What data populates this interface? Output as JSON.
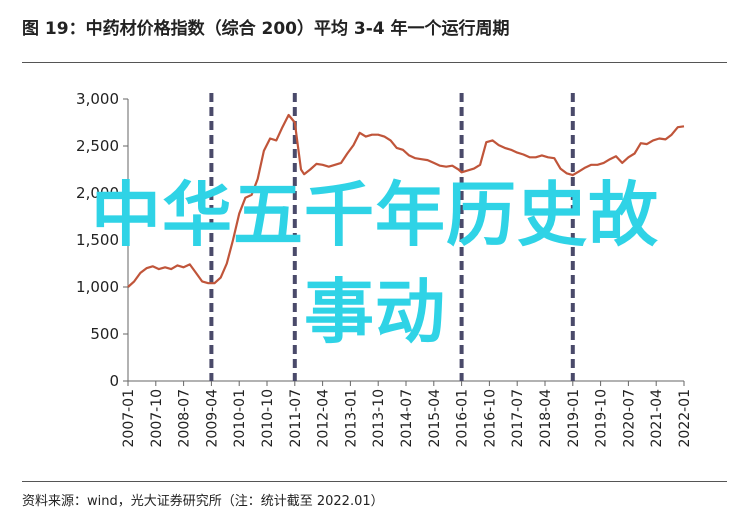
{
  "title": "图 19：中药材价格指数（综合 200）平均 3-4 年一个运行周期",
  "source": "资料来源：wind，光大证券研究所（注：统计截至 2022.01）",
  "overlay": {
    "line1": "中华五千年历史故",
    "line2": "事动"
  },
  "colors": {
    "line": "#c0553a",
    "dashed": "#4a4a6a",
    "overlay": "#2fd3e6"
  },
  "chart_data": {
    "type": "line",
    "title": "",
    "xlabel": "",
    "ylabel": "",
    "ylim": [
      0,
      3000
    ],
    "yticks": [
      0,
      500,
      1000,
      1500,
      2000,
      2500,
      3000
    ],
    "ytick_labels": [
      "0",
      "500",
      "1,000",
      "1,500",
      "2,000",
      "2,500",
      "3,000"
    ],
    "xticks": [
      "2007-01",
      "2007-10",
      "2008-07",
      "2009-04",
      "2010-01",
      "2010-10",
      "2011-07",
      "2012-04",
      "2013-01",
      "2013-10",
      "2014-07",
      "2015-04",
      "2016-01",
      "2016-10",
      "2017-07",
      "2018-04",
      "2019-01",
      "2019-10",
      "2020-07",
      "2021-04",
      "2022-01"
    ],
    "cycle_markers": [
      "2009-04",
      "2011-07",
      "2016-01",
      "2019-01"
    ],
    "grid": false,
    "series": [
      {
        "values": [
          [
            "2007-01",
            1000
          ],
          [
            "2007-03",
            1060
          ],
          [
            "2007-05",
            1150
          ],
          [
            "2007-07",
            1200
          ],
          [
            "2007-09",
            1220
          ],
          [
            "2007-11",
            1190
          ],
          [
            "2008-01",
            1210
          ],
          [
            "2008-03",
            1190
          ],
          [
            "2008-05",
            1230
          ],
          [
            "2008-07",
            1210
          ],
          [
            "2008-09",
            1240
          ],
          [
            "2008-11",
            1150
          ],
          [
            "2009-01",
            1060
          ],
          [
            "2009-03",
            1040
          ],
          [
            "2009-05",
            1040
          ],
          [
            "2009-07",
            1100
          ],
          [
            "2009-09",
            1250
          ],
          [
            "2009-11",
            1500
          ],
          [
            "2010-01",
            1780
          ],
          [
            "2010-03",
            1950
          ],
          [
            "2010-05",
            1980
          ],
          [
            "2010-07",
            2150
          ],
          [
            "2010-09",
            2450
          ],
          [
            "2010-11",
            2580
          ],
          [
            "2011-01",
            2560
          ],
          [
            "2011-03",
            2700
          ],
          [
            "2011-05",
            2830
          ],
          [
            "2011-07",
            2750
          ],
          [
            "2011-08",
            2500
          ],
          [
            "2011-09",
            2250
          ],
          [
            "2011-10",
            2200
          ],
          [
            "2011-12",
            2250
          ],
          [
            "2012-02",
            2310
          ],
          [
            "2012-04",
            2300
          ],
          [
            "2012-06",
            2280
          ],
          [
            "2012-08",
            2300
          ],
          [
            "2012-10",
            2320
          ],
          [
            "2012-12",
            2420
          ],
          [
            "2013-02",
            2510
          ],
          [
            "2013-04",
            2640
          ],
          [
            "2013-06",
            2600
          ],
          [
            "2013-08",
            2620
          ],
          [
            "2013-10",
            2620
          ],
          [
            "2013-12",
            2600
          ],
          [
            "2014-02",
            2560
          ],
          [
            "2014-04",
            2480
          ],
          [
            "2014-06",
            2460
          ],
          [
            "2014-08",
            2400
          ],
          [
            "2014-10",
            2370
          ],
          [
            "2014-12",
            2360
          ],
          [
            "2015-02",
            2350
          ],
          [
            "2015-04",
            2320
          ],
          [
            "2015-06",
            2290
          ],
          [
            "2015-08",
            2280
          ],
          [
            "2015-10",
            2290
          ],
          [
            "2015-12",
            2250
          ],
          [
            "2016-01",
            2220
          ],
          [
            "2016-03",
            2240
          ],
          [
            "2016-05",
            2260
          ],
          [
            "2016-07",
            2300
          ],
          [
            "2016-09",
            2540
          ],
          [
            "2016-11",
            2560
          ],
          [
            "2017-01",
            2510
          ],
          [
            "2017-03",
            2480
          ],
          [
            "2017-05",
            2460
          ],
          [
            "2017-07",
            2430
          ],
          [
            "2017-09",
            2410
          ],
          [
            "2017-11",
            2380
          ],
          [
            "2018-01",
            2380
          ],
          [
            "2018-03",
            2400
          ],
          [
            "2018-05",
            2380
          ],
          [
            "2018-07",
            2370
          ],
          [
            "2018-09",
            2260
          ],
          [
            "2018-11",
            2210
          ],
          [
            "2019-01",
            2190
          ],
          [
            "2019-03",
            2230
          ],
          [
            "2019-05",
            2270
          ],
          [
            "2019-07",
            2300
          ],
          [
            "2019-09",
            2300
          ],
          [
            "2019-11",
            2320
          ],
          [
            "2020-01",
            2360
          ],
          [
            "2020-03",
            2390
          ],
          [
            "2020-05",
            2320
          ],
          [
            "2020-07",
            2380
          ],
          [
            "2020-09",
            2420
          ],
          [
            "2020-11",
            2530
          ],
          [
            "2021-01",
            2520
          ],
          [
            "2021-03",
            2560
          ],
          [
            "2021-05",
            2580
          ],
          [
            "2021-07",
            2570
          ],
          [
            "2021-09",
            2620
          ],
          [
            "2021-11",
            2700
          ],
          [
            "2022-01",
            2710
          ]
        ]
      }
    ]
  }
}
